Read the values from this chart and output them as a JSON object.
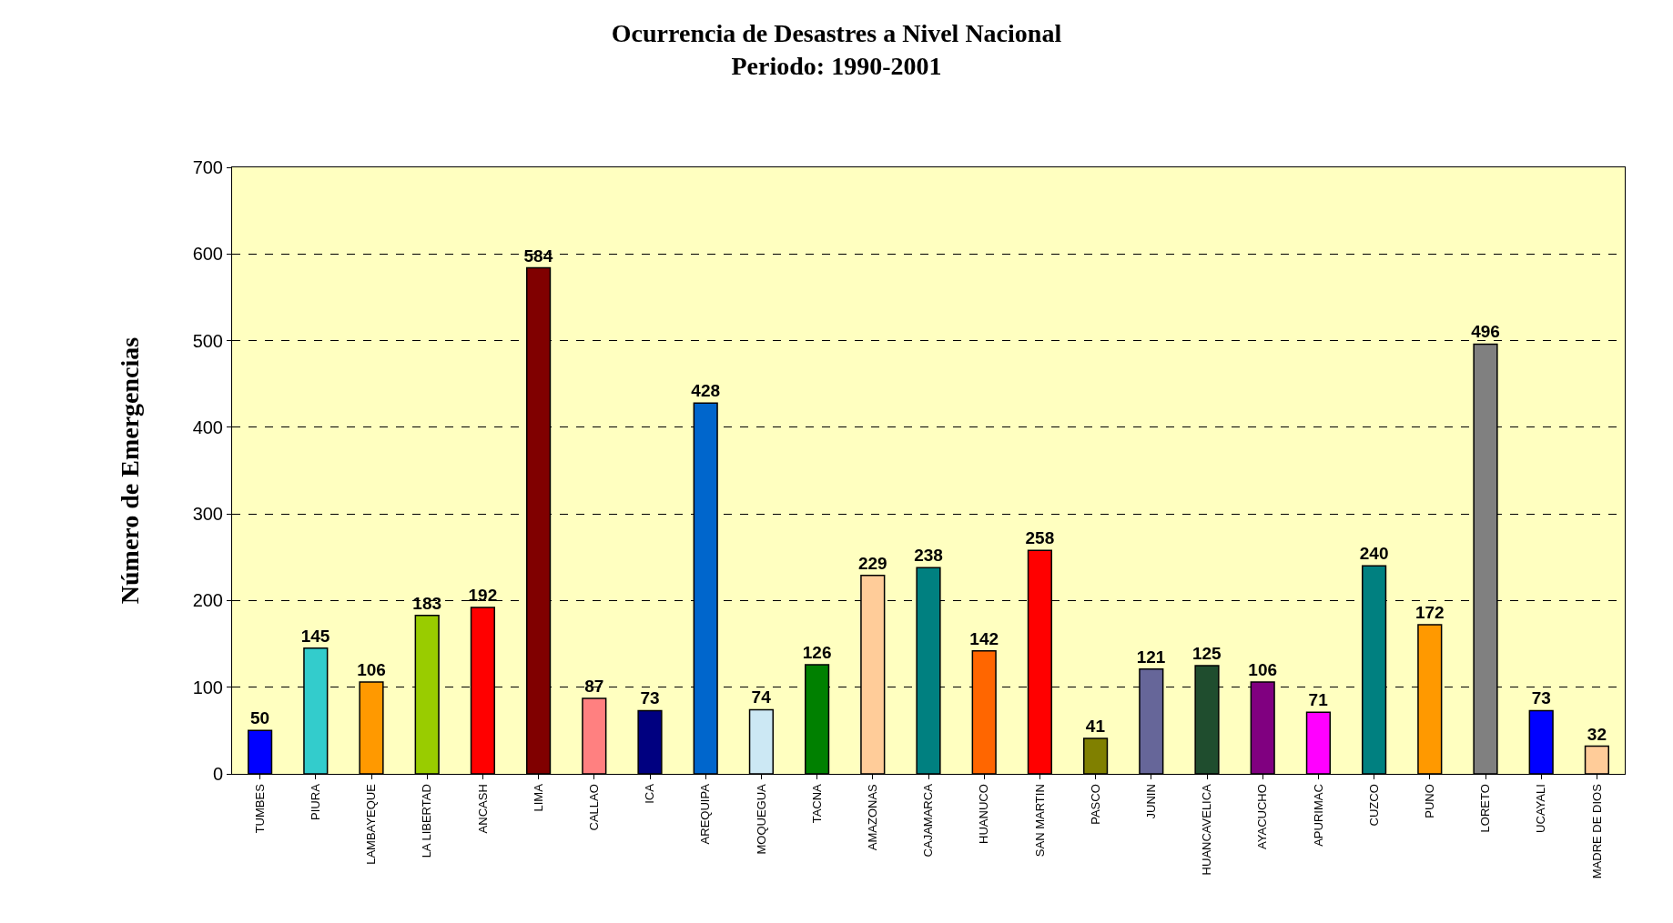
{
  "chart_data": {
    "type": "bar",
    "title": "Ocurrencia de Desastres a Nivel Nacional",
    "subtitle": "Periodo: 1990-2001",
    "ylabel": "Número de Emergencias",
    "categories": [
      "TUMBES",
      "PIURA",
      "LAMBAYEQUE",
      "LA LIBERTAD",
      "ANCASH",
      "LIMA",
      "CALLAO",
      "ICA",
      "AREQUIPA",
      "MOQUEGUA",
      "TACNA",
      "AMAZONAS",
      "CAJAMARCA",
      "HUANUCO",
      "SAN MARTIN",
      "PASCO",
      "JUNIN",
      "HUANCAVELICA",
      "AYACUCHO",
      "APURIMAC",
      "CUZCO",
      "PUNO",
      "LORETO",
      "UCAYALI",
      "MADRE DE DIOS"
    ],
    "values": [
      50,
      145,
      106,
      183,
      192,
      584,
      87,
      73,
      428,
      74,
      126,
      229,
      238,
      142,
      258,
      41,
      121,
      125,
      106,
      71,
      240,
      172,
      496,
      73,
      32
    ],
    "colors": [
      "#0000ff",
      "#33cccc",
      "#ff9900",
      "#99cc00",
      "#ff0000",
      "#800000",
      "#ff8080",
      "#000080",
      "#0066cc",
      "#cce8f4",
      "#008000",
      "#ffcc99",
      "#008080",
      "#ff6600",
      "#ff0000",
      "#808000",
      "#666699",
      "#1f4d2e",
      "#800080",
      "#ff00ff",
      "#008080",
      "#ff9900",
      "#808080",
      "#0000ff",
      "#ffcc99"
    ],
    "ylim": [
      0,
      700
    ],
    "yticks": [
      0,
      100,
      200,
      300,
      400,
      500,
      600,
      700
    ],
    "grid": "y",
    "data_labels": true
  }
}
